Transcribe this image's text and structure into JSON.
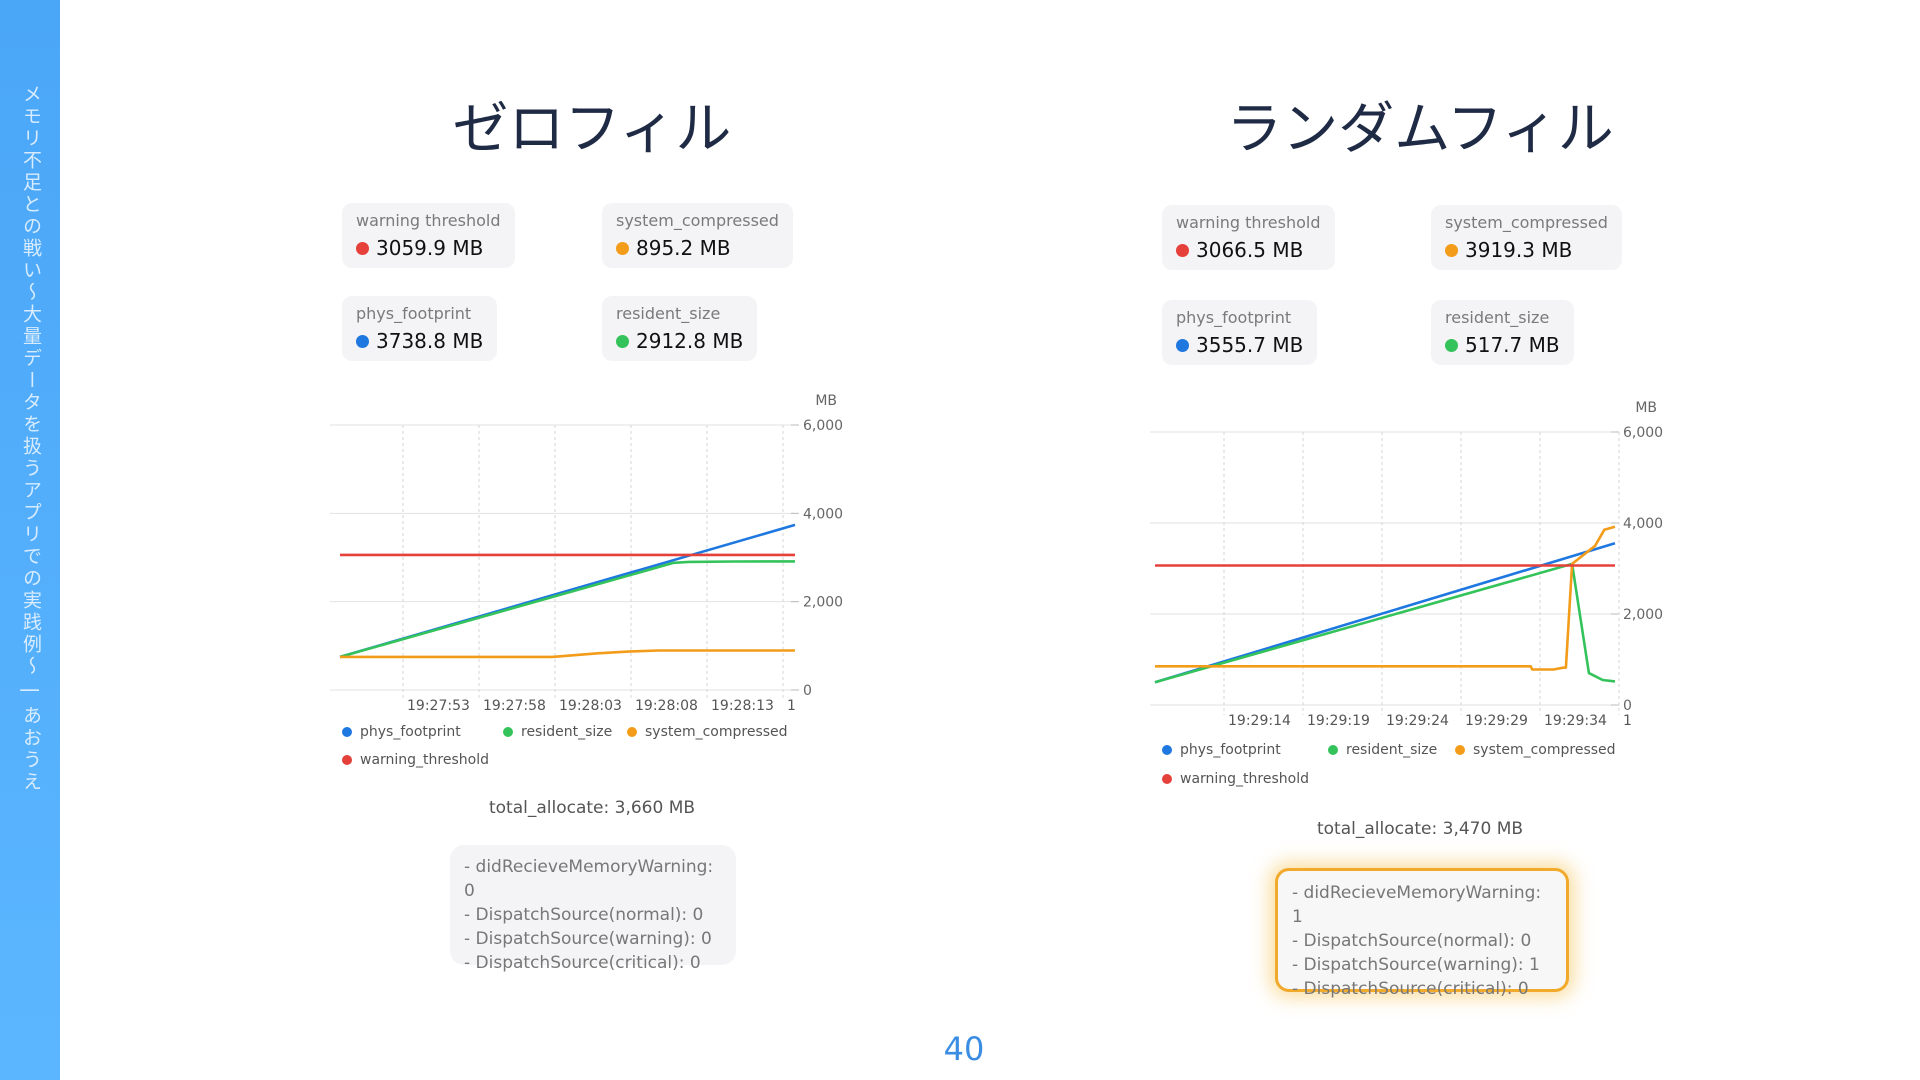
{
  "sidebar_text": "メモリ不足との戦い〜大量データを扱うアプリでの実践例〜 | あおうえ",
  "page_number": "40",
  "colors": {
    "warning_threshold": "#e5403a",
    "system_compressed": "#f29c1a",
    "phys_footprint": "#1f78e0",
    "resident_size": "#34c35a"
  },
  "left": {
    "title": "ゼロフィル",
    "stats": [
      {
        "label": "warning threshold",
        "value": "3059.9 MB",
        "color": "#e5403a"
      },
      {
        "label": "system_compressed",
        "value": "895.2 MB",
        "color": "#f29c1a"
      },
      {
        "label": "phys_footprint",
        "value": "3738.8 MB",
        "color": "#1f78e0"
      },
      {
        "label": "resident_size",
        "value": "2912.8 MB",
        "color": "#34c35a"
      }
    ],
    "legend": [
      "phys_footprint",
      "resident_size",
      "system_compressed",
      "warning_threshold"
    ],
    "total": "total_allocate: 3,660 MB",
    "counters": [
      "- didRecieveMemoryWarning: 0",
      "- DispatchSource(normal): 0",
      "- DispatchSource(warning): 0",
      "- DispatchSource(critical): 0"
    ]
  },
  "right": {
    "title": "ランダムフィル",
    "stats": [
      {
        "label": "warning threshold",
        "value": "3066.5 MB",
        "color": "#e5403a"
      },
      {
        "label": "system_compressed",
        "value": "3919.3 MB",
        "color": "#f29c1a"
      },
      {
        "label": "phys_footprint",
        "value": "3555.7 MB",
        "color": "#1f78e0"
      },
      {
        "label": "resident_size",
        "value": "517.7 MB",
        "color": "#34c35a"
      }
    ],
    "legend": [
      "phys_footprint",
      "resident_size",
      "system_compressed",
      "warning_threshold"
    ],
    "total": "total_allocate: 3,470 MB",
    "counters": [
      "- didRecieveMemoryWarning: 1",
      "- DispatchSource(normal): 0",
      "- DispatchSource(warning): 1",
      "- DispatchSource(critical): 0"
    ]
  },
  "chart_data": [
    {
      "type": "line",
      "unit": "MB",
      "ylim": [
        0,
        6000
      ],
      "yticks": [
        0,
        2000,
        4000,
        6000
      ],
      "xticks": [
        "19:27:53",
        "19:27:58",
        "19:28:03",
        "19:28:08",
        "19:28:13",
        "1"
      ],
      "xlim": [
        0,
        30
      ],
      "series": [
        {
          "name": "phys_footprint",
          "color": "#1f78e0",
          "x": [
            0,
            30
          ],
          "y": [
            750,
            3738.8
          ]
        },
        {
          "name": "resident_size",
          "color": "#34c35a",
          "x": [
            0,
            22,
            23,
            26,
            30
          ],
          "y": [
            750,
            2880,
            2900,
            2910,
            2912.8
          ]
        },
        {
          "name": "system_compressed",
          "color": "#f29c1a",
          "x": [
            0,
            14,
            17,
            19,
            21,
            30
          ],
          "y": [
            750,
            750,
            830,
            870,
            895,
            895.2
          ]
        },
        {
          "name": "warning_threshold",
          "color": "#e5403a",
          "x": [
            0,
            30
          ],
          "y": [
            3059.9,
            3059.9
          ]
        }
      ]
    },
    {
      "type": "line",
      "unit": "MB",
      "ylim": [
        0,
        6000
      ],
      "yticks": [
        0,
        2000,
        4000,
        6000
      ],
      "xticks": [
        "19:29:14",
        "19:29:19",
        "19:29:24",
        "19:29:29",
        "19:29:34",
        "1"
      ],
      "xlim": [
        0,
        30
      ],
      "series": [
        {
          "name": "phys_footprint",
          "color": "#1f78e0",
          "x": [
            0,
            30
          ],
          "y": [
            500,
            3555.7
          ]
        },
        {
          "name": "resident_size",
          "color": "#34c35a",
          "x": [
            0,
            27.2,
            28.3,
            29.2,
            30
          ],
          "y": [
            500,
            3100,
            700,
            550,
            517.7
          ]
        },
        {
          "name": "system_compressed",
          "color": "#f29c1a",
          "x": [
            0,
            24.5,
            24.6,
            26,
            26.6,
            26.8,
            27.2,
            28.7,
            29.3,
            30
          ],
          "y": [
            850,
            850,
            780,
            780,
            820,
            820,
            3100,
            3500,
            3850,
            3919.3
          ]
        },
        {
          "name": "warning_threshold",
          "color": "#e5403a",
          "x": [
            0,
            30
          ],
          "y": [
            3066.5,
            3066.5
          ]
        }
      ]
    }
  ]
}
